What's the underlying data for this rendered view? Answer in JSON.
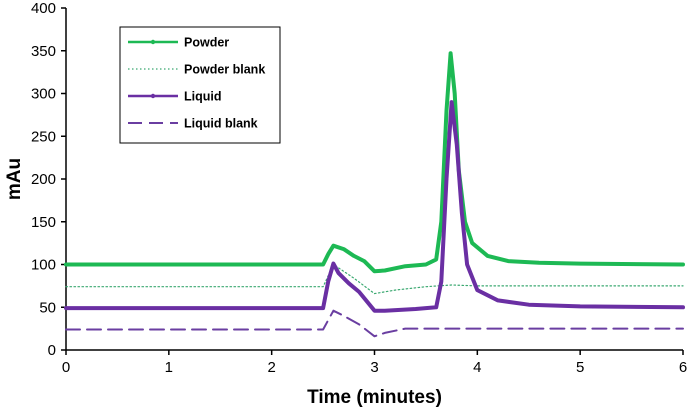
{
  "chart_data": {
    "type": "line",
    "title": "",
    "xlabel": "Time (minutes)",
    "ylabel": "mAu",
    "xlim": [
      0,
      6
    ],
    "ylim": [
      0,
      400
    ],
    "xticks": [
      0,
      1,
      2,
      3,
      4,
      5,
      6
    ],
    "yticks": [
      0,
      50,
      100,
      150,
      200,
      250,
      300,
      350,
      400
    ],
    "grid": false,
    "legend_position": "top-left",
    "series": [
      {
        "name": "Powder",
        "color": "#1db954",
        "style": "solid-markers",
        "points": [
          [
            0,
            100
          ],
          [
            2.5,
            100
          ],
          [
            2.55,
            112
          ],
          [
            2.6,
            122
          ],
          [
            2.7,
            118
          ],
          [
            2.8,
            110
          ],
          [
            2.9,
            104
          ],
          [
            3.0,
            92
          ],
          [
            3.1,
            93
          ],
          [
            3.3,
            98
          ],
          [
            3.5,
            100
          ],
          [
            3.6,
            106
          ],
          [
            3.65,
            150
          ],
          [
            3.7,
            280
          ],
          [
            3.74,
            347
          ],
          [
            3.78,
            300
          ],
          [
            3.82,
            210
          ],
          [
            3.88,
            150
          ],
          [
            3.95,
            125
          ],
          [
            4.1,
            110
          ],
          [
            4.3,
            104
          ],
          [
            4.6,
            102
          ],
          [
            5.0,
            101
          ],
          [
            6.0,
            100
          ]
        ]
      },
      {
        "name": "Powder blank",
        "color": "#3aa870",
        "style": "dotted",
        "points": [
          [
            0,
            74
          ],
          [
            2.5,
            74
          ],
          [
            2.6,
            100
          ],
          [
            2.7,
            92
          ],
          [
            2.8,
            84
          ],
          [
            3.0,
            66
          ],
          [
            3.2,
            70
          ],
          [
            3.5,
            74
          ],
          [
            3.75,
            76
          ],
          [
            4.0,
            75
          ],
          [
            6.0,
            75
          ]
        ]
      },
      {
        "name": "Liquid",
        "color": "#6a2fa3",
        "style": "solid-markers",
        "points": [
          [
            0,
            49
          ],
          [
            2.5,
            49
          ],
          [
            2.55,
            80
          ],
          [
            2.6,
            101
          ],
          [
            2.65,
            90
          ],
          [
            2.75,
            78
          ],
          [
            2.85,
            68
          ],
          [
            3.0,
            46
          ],
          [
            3.1,
            46
          ],
          [
            3.4,
            48
          ],
          [
            3.6,
            50
          ],
          [
            3.65,
            80
          ],
          [
            3.7,
            200
          ],
          [
            3.75,
            290
          ],
          [
            3.8,
            240
          ],
          [
            3.85,
            160
          ],
          [
            3.9,
            100
          ],
          [
            4.0,
            70
          ],
          [
            4.2,
            58
          ],
          [
            4.5,
            53
          ],
          [
            5.0,
            51
          ],
          [
            6.0,
            50
          ]
        ]
      },
      {
        "name": "Liquid blank",
        "color": "#6a3ea1",
        "style": "dashed",
        "points": [
          [
            0,
            24
          ],
          [
            2.5,
            24
          ],
          [
            2.6,
            46
          ],
          [
            2.7,
            40
          ],
          [
            2.85,
            30
          ],
          [
            3.0,
            16
          ],
          [
            3.1,
            20
          ],
          [
            3.3,
            25
          ],
          [
            6.0,
            25
          ]
        ]
      }
    ]
  }
}
